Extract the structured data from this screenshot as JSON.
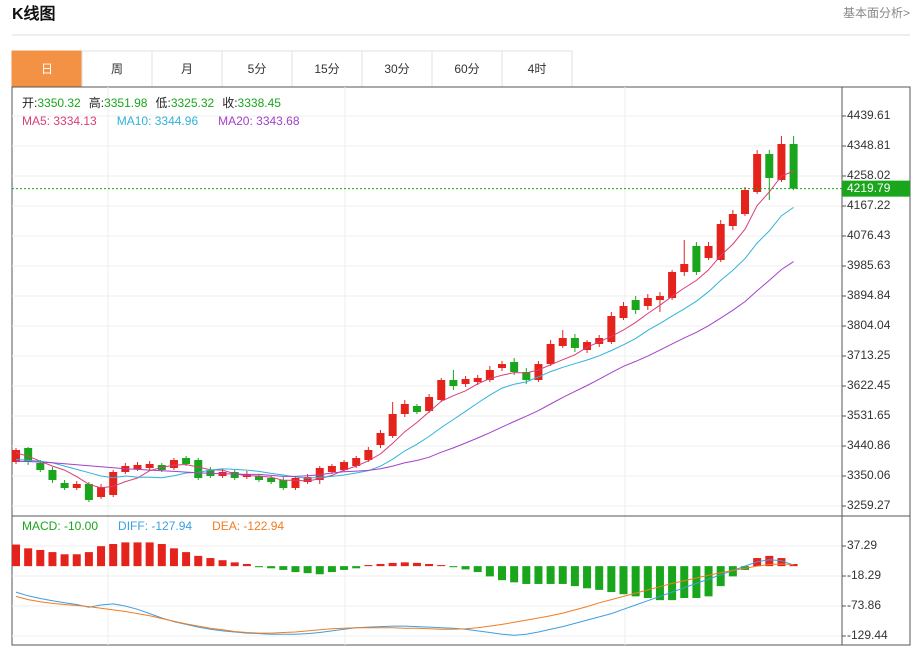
{
  "header": {
    "title": "K线图",
    "link": "基本面分析>"
  },
  "tabs": {
    "items": [
      "日",
      "周",
      "月",
      "5分",
      "15分",
      "30分",
      "60分",
      "4时"
    ],
    "active": 0,
    "active_color": "#f39244"
  },
  "chart_data": [
    {
      "type": "candlestick",
      "info": [
        {
          "label": "开:",
          "value": 3350.32
        },
        {
          "label": "高:",
          "value": 3351.98
        },
        {
          "label": "低:",
          "value": 3325.32
        },
        {
          "label": "收:",
          "value": 3338.45
        }
      ],
      "colors": {
        "up": "#e5231d",
        "down": "#19a61c"
      },
      "ohlc": [
        [
          3392.4,
          3434.8,
          3386.4,
          3428.8
        ],
        [
          3434.8,
          3437.8,
          3383.4,
          3392.4
        ],
        [
          3389.4,
          3398.5,
          3362.2,
          3368.2
        ],
        [
          3368.2,
          3377.3,
          3328.9,
          3338.0
        ],
        [
          3328.9,
          3338.0,
          3307.7,
          3313.7
        ],
        [
          3313.7,
          3334.9,
          3307.7,
          3325.9
        ],
        [
          3325.9,
          3331.9,
          3271.4,
          3277.4
        ],
        [
          3286.5,
          3325.9,
          3280.5,
          3316.8
        ],
        [
          3292.6,
          3368.2,
          3286.5,
          3362.2
        ],
        [
          3362.2,
          3389.4,
          3356.1,
          3380.3
        ],
        [
          3371.2,
          3392.4,
          3365.2,
          3383.4
        ],
        [
          3374.3,
          3395.5,
          3368.2,
          3386.4
        ],
        [
          3383.4,
          3389.4,
          3362.2,
          3368.2
        ],
        [
          3374.3,
          3404.5,
          3368.2,
          3398.5
        ],
        [
          3404.5,
          3410.6,
          3380.3,
          3386.4
        ],
        [
          3398.5,
          3404.5,
          3338.0,
          3344.0
        ],
        [
          3368.2,
          3377.3,
          3344.0,
          3350.1
        ],
        [
          3350.1,
          3371.2,
          3344.0,
          3362.2
        ],
        [
          3362.2,
          3368.2,
          3338.0,
          3344.0
        ],
        [
          3347.0,
          3365.2,
          3341.0,
          3356.1
        ],
        [
          3350.1,
          3356.1,
          3331.9,
          3338.0
        ],
        [
          3344.0,
          3350.1,
          3325.9,
          3331.9
        ],
        [
          3338.0,
          3347.0,
          3307.7,
          3313.7
        ],
        [
          3313.7,
          3350.1,
          3307.7,
          3344.0
        ],
        [
          3331.9,
          3356.1,
          3325.9,
          3347.0
        ],
        [
          3338.0,
          3380.3,
          3325.9,
          3374.3
        ],
        [
          3362.2,
          3386.4,
          3356.1,
          3380.3
        ],
        [
          3368.2,
          3398.5,
          3362.2,
          3392.4
        ],
        [
          3380.3,
          3410.6,
          3374.3,
          3404.5
        ],
        [
          3398.5,
          3437.8,
          3392.4,
          3428.8
        ],
        [
          3443.9,
          3489.3,
          3434.8,
          3480.2
        ],
        [
          3471.1,
          3574.0,
          3465.1,
          3537.7
        ],
        [
          3537.7,
          3580.1,
          3528.6,
          3568.0
        ],
        [
          3561.9,
          3568.0,
          3537.7,
          3543.8
        ],
        [
          3546.8,
          3598.2,
          3540.7,
          3589.2
        ],
        [
          3580.1,
          3646.7,
          3574.0,
          3640.6
        ],
        [
          3640.6,
          3670.9,
          3610.3,
          3622.4
        ],
        [
          3628.5,
          3652.7,
          3619.4,
          3643.6
        ],
        [
          3634.6,
          3655.7,
          3625.5,
          3646.7
        ],
        [
          3640.6,
          3683.0,
          3634.6,
          3670.9
        ],
        [
          3676.9,
          3698.1,
          3667.8,
          3689.0
        ],
        [
          3695.1,
          3707.2,
          3655.7,
          3664.8
        ],
        [
          3664.8,
          3676.9,
          3628.5,
          3640.6
        ],
        [
          3640.6,
          3698.1,
          3634.6,
          3689.0
        ],
        [
          3689.0,
          3761.7,
          3683.0,
          3749.6
        ],
        [
          3743.5,
          3791.9,
          3737.5,
          3767.7
        ],
        [
          3767.7,
          3779.8,
          3725.4,
          3737.5
        ],
        [
          3731.4,
          3761.7,
          3722.3,
          3755.6
        ],
        [
          3749.6,
          3776.8,
          3740.5,
          3767.7
        ],
        [
          3755.6,
          3846.4,
          3749.6,
          3834.3
        ],
        [
          3828.2,
          3876.7,
          3822.2,
          3864.6
        ],
        [
          3882.7,
          3894.8,
          3840.4,
          3852.5
        ],
        [
          3864.6,
          3900.9,
          3852.5,
          3888.8
        ],
        [
          3882.7,
          3906.9,
          3846.4,
          3894.8
        ],
        [
          3888.8,
          3973.5,
          3882.7,
          3967.5
        ],
        [
          3967.5,
          4064.3,
          3955.4,
          3991.7
        ],
        [
          4046.2,
          4058.3,
          3958.4,
          3967.5
        ],
        [
          4009.8,
          4058.3,
          4003.8,
          4046.2
        ],
        [
          4003.8,
          4124.8,
          3997.7,
          4112.7
        ],
        [
          4106.7,
          4155.1,
          4094.6,
          4143.0
        ],
        [
          4143.0,
          4224.7,
          4137.0,
          4215.6
        ],
        [
          4209.6,
          4336.7,
          4203.5,
          4324.6
        ],
        [
          4324.6,
          4336.7,
          4185.4,
          4252.0
        ],
        [
          4245.9,
          4379.1,
          4239.9,
          4354.9
        ],
        [
          4354.9,
          4379.1,
          4215.6,
          4219.79
        ]
      ],
      "series": [
        {
          "name": "MA5: 3334.13",
          "color": "#d93d78",
          "values": [
            3420,
            3410,
            3395,
            3380,
            3368,
            3348,
            3325,
            3314,
            3319,
            3333,
            3344,
            3366,
            3376,
            3383,
            3385,
            3377,
            3369,
            3368,
            3357,
            3351,
            3350,
            3346,
            3337,
            3337,
            3335,
            3342,
            3352,
            3368,
            3380,
            3396,
            3417,
            3449,
            3484,
            3512,
            3544,
            3576,
            3593,
            3608,
            3629,
            3645,
            3655,
            3663,
            3662,
            3671,
            3687,
            3702,
            3717,
            3740,
            3756,
            3773,
            3792,
            3815,
            3842,
            3867,
            3894,
            3919,
            3942,
            3974,
            4017,
            4052,
            4097,
            4168,
            4210,
            4258,
            4273
          ]
        },
        {
          "name": "MA10: 3344.96",
          "color": "#2fb3d9",
          "values": [
            3400,
            3398,
            3395,
            3390,
            3380,
            3370,
            3360,
            3350,
            3345,
            3350,
            3346,
            3346,
            3345,
            3351,
            3359,
            3361,
            3368,
            3372,
            3370,
            3368,
            3364,
            3358,
            3353,
            3347,
            3343,
            3346,
            3349,
            3353,
            3359,
            3366,
            3380,
            3401,
            3426,
            3446,
            3470,
            3497,
            3521,
            3546,
            3571,
            3595,
            3616,
            3628,
            3635,
            3650,
            3666,
            3679,
            3690,
            3701,
            3714,
            3730,
            3747,
            3766,
            3791,
            3812,
            3834,
            3856,
            3879,
            3908,
            3942,
            3973,
            4008,
            4055,
            4092,
            4138,
            4163
          ]
        },
        {
          "name": "MA20: 3343.68",
          "color": "#a540c9",
          "values": [
            3395,
            3394,
            3392,
            3390,
            3387,
            3384,
            3381,
            3378,
            3375,
            3372,
            3370,
            3368,
            3366,
            3364,
            3362,
            3360,
            3358,
            3357,
            3356,
            3355,
            3355,
            3352,
            3349,
            3349,
            3351,
            3354,
            3359,
            3363,
            3365,
            3367,
            3372,
            3380,
            3390,
            3397,
            3407,
            3422,
            3435,
            3450,
            3465,
            3481,
            3498,
            3515,
            3531,
            3548,
            3568,
            3588,
            3606,
            3624,
            3643,
            3663,
            3682,
            3697,
            3713,
            3731,
            3750,
            3768,
            3785,
            3805,
            3828,
            3852,
            3878,
            3911,
            3942,
            3975,
            3999
          ]
        }
      ],
      "ylim": [
        3229.0,
        4527.4
      ],
      "yticks": [
        4439.61,
        4348.81,
        4258.02,
        4167.22,
        4076.43,
        3985.63,
        3894.84,
        3804.04,
        3713.25,
        3622.45,
        3531.65,
        3440.86,
        3350.06,
        3259.27
      ],
      "grid": true
    },
    {
      "type": "macd",
      "colors": {
        "up": "#e5231d",
        "down": "#19a61c"
      },
      "histogram": {
        "name": "MACD: -10.00",
        "color": "#19a61c",
        "values": [
          40,
          33,
          30,
          26,
          22,
          22,
          26,
          37,
          41,
          44,
          44,
          44,
          41,
          33,
          26,
          19,
          15,
          11,
          7,
          4,
          -2,
          -4,
          -7,
          -11,
          -13,
          -15,
          -11,
          -7,
          -4,
          2,
          4,
          6,
          7,
          6,
          4,
          2,
          -2,
          -6,
          -11,
          -19,
          -26,
          -30,
          -33,
          -33,
          -33,
          -33,
          -37,
          -41,
          -44,
          -48,
          -52,
          -56,
          -59,
          -63,
          -63,
          -59,
          -59,
          -56,
          -37,
          -19,
          -7,
          15,
          19,
          15,
          4
        ]
      },
      "series": [
        {
          "name": "DIFF: -127.94",
          "color": "#3c9fe0",
          "values": [
            -48,
            -55,
            -60,
            -64,
            -68,
            -71,
            -76,
            -72,
            -70,
            -74,
            -80,
            -88,
            -96,
            -103,
            -108,
            -113,
            -117,
            -120,
            -122,
            -124,
            -125,
            -126,
            -126,
            -126,
            -125,
            -123,
            -120,
            -117,
            -114,
            -113,
            -112,
            -111,
            -111,
            -112,
            -113,
            -114,
            -115,
            -117,
            -120,
            -123,
            -126,
            -128,
            -126,
            -122,
            -117,
            -112,
            -106,
            -100,
            -94,
            -88,
            -80,
            -72,
            -64,
            -56,
            -48,
            -40,
            -32,
            -24,
            -16,
            -8,
            0,
            8,
            12,
            10,
            2
          ]
        },
        {
          "name": "DEA: -122.94",
          "color": "#f07d22",
          "values": [
            -56,
            -62,
            -66,
            -69,
            -71,
            -73,
            -75,
            -78,
            -81,
            -84,
            -88,
            -92,
            -97,
            -102,
            -107,
            -111,
            -115,
            -118,
            -121,
            -123,
            -124,
            -124,
            -123,
            -122,
            -120,
            -118,
            -116,
            -115,
            -114,
            -114,
            -114,
            -114,
            -115,
            -115,
            -116,
            -117,
            -117,
            -116,
            -114,
            -111,
            -108,
            -104,
            -100,
            -96,
            -92,
            -87,
            -81,
            -75,
            -68,
            -62,
            -56,
            -50,
            -44,
            -38,
            -32,
            -27,
            -22,
            -17,
            -12,
            -8,
            -4,
            0,
            3,
            4,
            3
          ]
        }
      ],
      "ylim": [
        -146.1,
        92.9
      ],
      "yticks": [
        37.29,
        -18.29,
        -73.86,
        -129.44
      ],
      "grid": true
    }
  ]
}
